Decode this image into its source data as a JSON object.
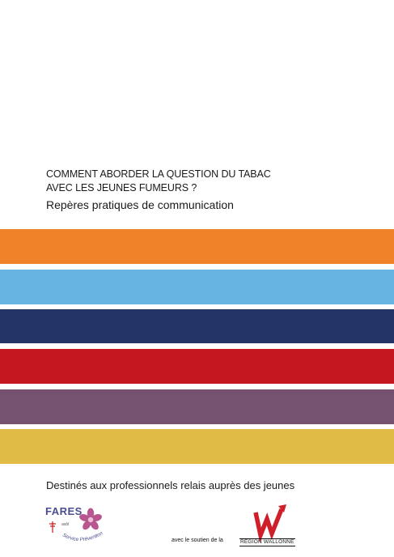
{
  "title": {
    "line1": "COMMENT ABORDER LA QUESTION DU TABAC",
    "line2": "AVEC LES JEUNES FUMEURS ?",
    "subtitle": "Repères pratiques de communication"
  },
  "stripes": {
    "colors": [
      "#f0832a",
      "#67b4e3",
      "#243466",
      "#c4171f",
      "#75526f",
      "#e0bb45"
    ]
  },
  "audience": "Destinés aux professionnels relais auprès des jeunes",
  "logos": {
    "fares": {
      "name": "FARES",
      "asbl": "asbl",
      "tagline": "Service Prévention Tabac",
      "flower_color": "#b8578f",
      "text_color": "#4a4e8f"
    },
    "support_text": "avec le soutien de la",
    "region": {
      "label": "RÉGION WALLONNE",
      "mark_color": "#d01f2a"
    }
  }
}
